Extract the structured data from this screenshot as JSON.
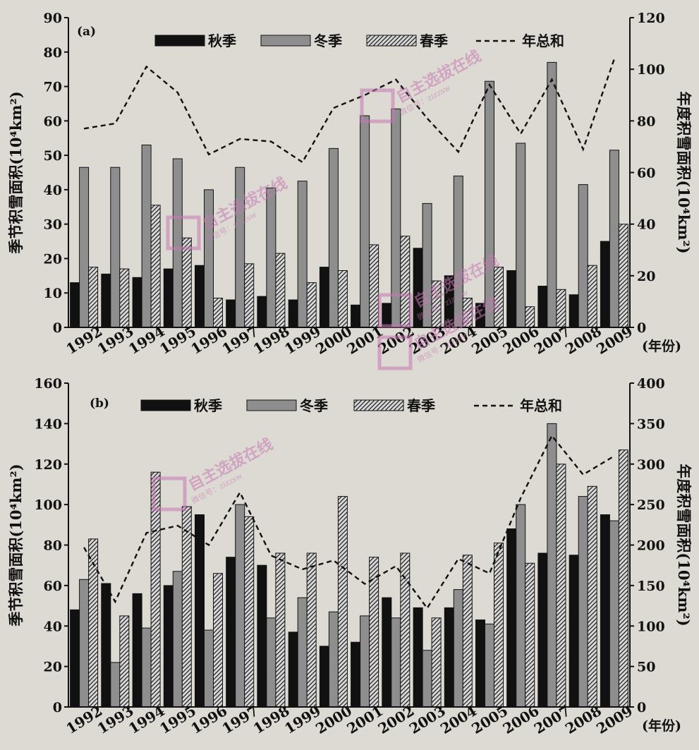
{
  "chart_data": [
    {
      "type": "bar",
      "panel_label": "(a)",
      "categories": [
        "1992",
        "1993",
        "1994",
        "1995",
        "1996",
        "1997",
        "1998",
        "1999",
        "2000",
        "2001",
        "2002",
        "2003",
        "2004",
        "2005",
        "2006",
        "2007",
        "2008",
        "2009"
      ],
      "x_unit_label": "(年份)",
      "ylabel_left": "季节积雪面积(10⁴km²)",
      "ylabel_right": "年度积雪面积(10⁴km²)",
      "ylim_left": [
        0,
        90
      ],
      "yticks_left": [
        0,
        10,
        20,
        30,
        40,
        50,
        60,
        70,
        80,
        90
      ],
      "ylim_right": [
        0,
        120
      ],
      "yticks_right": [
        0,
        20,
        40,
        60,
        80,
        100,
        120
      ],
      "legend_position": "top",
      "series": [
        {
          "name": "秋季",
          "axis": "left",
          "style": "black",
          "values": [
            13,
            15.5,
            14.5,
            17,
            18,
            8,
            9,
            8,
            17.5,
            6.5,
            7,
            23,
            15,
            7,
            16.5,
            12,
            9.5,
            25
          ]
        },
        {
          "name": "冬季",
          "axis": "left",
          "style": "gray",
          "values": [
            46.5,
            46.5,
            53,
            49,
            40,
            46.5,
            40.5,
            42.5,
            52,
            61.5,
            63.5,
            36,
            44,
            71.5,
            53.5,
            77,
            41.5,
            51.5
          ]
        },
        {
          "name": "春季",
          "axis": "left",
          "style": "hatched",
          "values": [
            17.5,
            17,
            35.5,
            26,
            8.5,
            18.5,
            21.5,
            13,
            16.5,
            24,
            26.5,
            13.5,
            8.5,
            17.5,
            6,
            11,
            18,
            30
          ]
        },
        {
          "name": "年总和",
          "axis": "right",
          "style": "dashed-line",
          "values": [
            77,
            79,
            101,
            91,
            67,
            73,
            72,
            64,
            85,
            90,
            96,
            81,
            68,
            94,
            75,
            96,
            69,
            104
          ]
        }
      ]
    },
    {
      "type": "bar",
      "panel_label": "(b)",
      "categories": [
        "1992",
        "1993",
        "1994",
        "1995",
        "1996",
        "1997",
        "1998",
        "1999",
        "2000",
        "2001",
        "2002",
        "2003",
        "2004",
        "2005",
        "2006",
        "2007",
        "2008",
        "2009"
      ],
      "x_unit_label": "(年份)",
      "ylabel_left": "季节积雪面积(10⁴km²)",
      "ylabel_right": "年度积雪面积(10⁴km²)",
      "ylim_left": [
        0,
        160
      ],
      "yticks_left": [
        0,
        20,
        40,
        60,
        80,
        100,
        120,
        140,
        160
      ],
      "ylim_right": [
        0,
        400
      ],
      "yticks_right": [
        0,
        50,
        100,
        150,
        200,
        250,
        300,
        350,
        400
      ],
      "legend_position": "top",
      "series": [
        {
          "name": "秋季",
          "axis": "left",
          "style": "black",
          "values": [
            48,
            61,
            56,
            60,
            95,
            74,
            70,
            37,
            30,
            32,
            54,
            49,
            49,
            43,
            88,
            76,
            75,
            95
          ]
        },
        {
          "name": "冬季",
          "axis": "left",
          "style": "gray",
          "values": [
            63,
            22,
            39,
            67,
            38,
            100,
            44,
            54,
            47,
            45,
            44,
            28,
            58,
            41,
            100,
            140,
            104,
            92
          ]
        },
        {
          "name": "春季",
          "axis": "left",
          "style": "hatched",
          "values": [
            83,
            45,
            116,
            99,
            66,
            94,
            76,
            76,
            104,
            74,
            76,
            44,
            75,
            81,
            71,
            120,
            109,
            127
          ]
        },
        {
          "name": "年总和",
          "axis": "right",
          "style": "dashed-line",
          "values": [
            197,
            130,
            215,
            224,
            200,
            265,
            187,
            170,
            181,
            152,
            174,
            122,
            183,
            165,
            258,
            335,
            287,
            310
          ]
        }
      ]
    }
  ],
  "watermark": {
    "text": "自主选拔在线",
    "sub": "微信号：zizzsw",
    "color": "#c878b4"
  },
  "colors": {
    "background": "#dcdad3",
    "black": "#111111",
    "gray": "#8e8e8e"
  }
}
